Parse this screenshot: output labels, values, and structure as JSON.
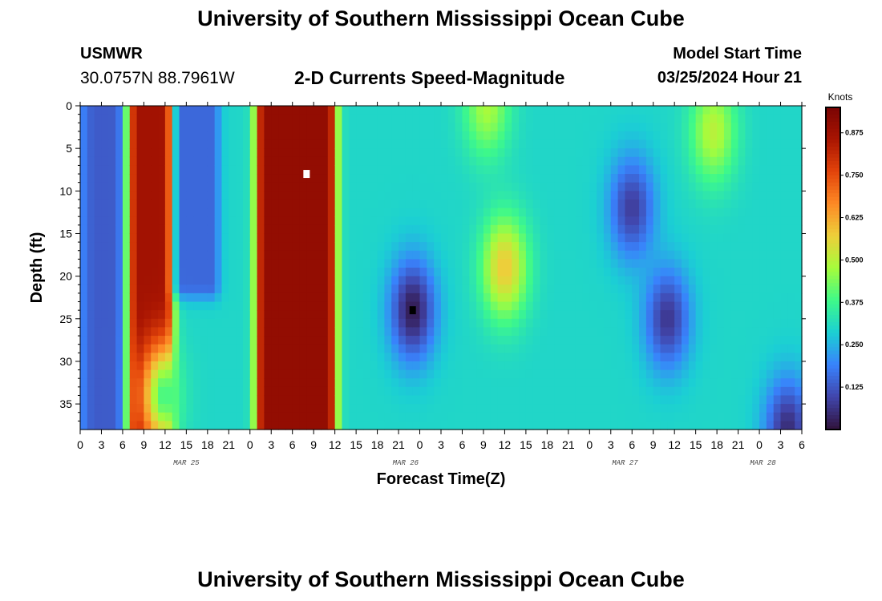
{
  "header": {
    "title": "University of Southern Mississippi Ocean Cube",
    "station": "USMWR",
    "coordinates": "30.0757N  88.7961W",
    "subtitle": "2-D Currents Speed-Magnitude",
    "model_start_label": "Model Start Time",
    "model_start_value": "03/25/2024 Hour 21"
  },
  "footer": {
    "title": "University of Southern Mississippi Ocean Cube"
  },
  "chart_data": {
    "type": "heatmap",
    "title": "2-D Currents Speed-Magnitude",
    "xlabel": "Forecast Time(Z)",
    "ylabel": "Depth (ft)",
    "x_tick_labels": [
      "0",
      "3",
      "6",
      "9",
      "12",
      "15",
      "18",
      "21",
      "0",
      "3",
      "6",
      "9",
      "12",
      "15",
      "18",
      "21",
      "0",
      "3",
      "6",
      "9",
      "12",
      "15",
      "18",
      "21",
      "0",
      "3",
      "6",
      "9",
      "12",
      "15",
      "18",
      "21",
      "0",
      "3",
      "6"
    ],
    "x_range_hours": [
      0,
      102
    ],
    "day_labels": [
      {
        "label": "MAR 25",
        "hour": 15
      },
      {
        "label": "MAR 26",
        "hour": 46
      },
      {
        "label": "MAR 27",
        "hour": 77
      },
      {
        "label": "MAR 28",
        "hour": 96.5
      }
    ],
    "y_ticks": [
      0,
      5,
      10,
      15,
      20,
      25,
      30,
      35
    ],
    "y_tick_labels": [
      "0",
      "5",
      "10",
      "15",
      "20",
      "25",
      "30",
      "35"
    ],
    "ylim": [
      0,
      38
    ],
    "colorbar": {
      "title": "Knots",
      "range": [
        0,
        0.95
      ],
      "ticks": [
        0.125,
        0.25,
        0.375,
        0.5,
        0.625,
        0.75,
        0.875
      ],
      "tick_labels": [
        "0.125",
        "0.250",
        "0.375",
        "0.500",
        "0.625",
        "0.750",
        "0.875"
      ]
    },
    "features": [
      {
        "shape": "column",
        "hour_from": 0,
        "hour_to": 2,
        "speed": 0.2
      },
      {
        "shape": "column",
        "hour_from": 2,
        "hour_to": 5,
        "speed": 0.13
      },
      {
        "shape": "column",
        "hour_from": 8,
        "hour_to": 12,
        "speed": 0.87
      },
      {
        "shape": "column",
        "hour_from": 14.5,
        "hour_to": 18.5,
        "depth_to": 21,
        "speed": 0.15
      },
      {
        "shape": "column",
        "hour_from": 26,
        "hour_to": 35,
        "speed": 0.9
      },
      {
        "shape": "blob",
        "hour": 12,
        "depth": 34,
        "speed": 0.38
      },
      {
        "shape": "blob",
        "hour": 47,
        "depth": 24,
        "speed": 0.02
      },
      {
        "shape": "blob",
        "hour": 60,
        "depth": 19,
        "speed": 0.58
      },
      {
        "shape": "blob",
        "hour": 57.5,
        "depth": 0,
        "speed": 0.48
      },
      {
        "shape": "blob",
        "hour": 78,
        "depth": 12,
        "speed": 0.08
      },
      {
        "shape": "blob",
        "hour": 83,
        "depth": 25,
        "speed": 0.07
      },
      {
        "shape": "blob",
        "hour": 89.5,
        "depth": 3,
        "speed": 0.5
      },
      {
        "shape": "blob",
        "hour": 100,
        "depth": 38,
        "speed": 0.05
      }
    ],
    "markers": [
      {
        "name": "max-speed",
        "hour": 32,
        "depth": 8,
        "color": "#ffffff"
      },
      {
        "name": "min-speed",
        "hour": 47,
        "depth": 24,
        "color": "#000000"
      }
    ]
  }
}
